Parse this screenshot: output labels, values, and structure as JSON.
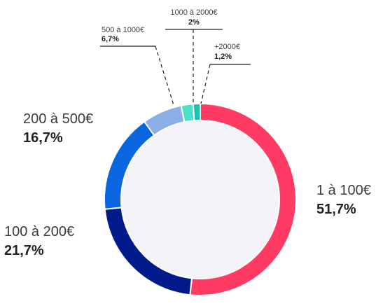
{
  "chart_data": {
    "type": "pie",
    "donut": true,
    "categories": [
      "1 à 100€",
      "100 à 200€",
      "200 à 500€",
      "500 à 1000€",
      "1000 à 2000€",
      "+2000€"
    ],
    "values": [
      51.7,
      21.7,
      16.7,
      6.7,
      2.0,
      1.2
    ],
    "value_labels": [
      "51,7%",
      "21,7%",
      "16,7%",
      "6,7%",
      "2%",
      "1,2%"
    ],
    "colors": [
      "#ff3b63",
      "#001a8c",
      "#0a66e0",
      "#8aaee6",
      "#4ce0c8",
      "#17c2b0"
    ],
    "center_fill": "#f4f4f8",
    "title": ""
  }
}
